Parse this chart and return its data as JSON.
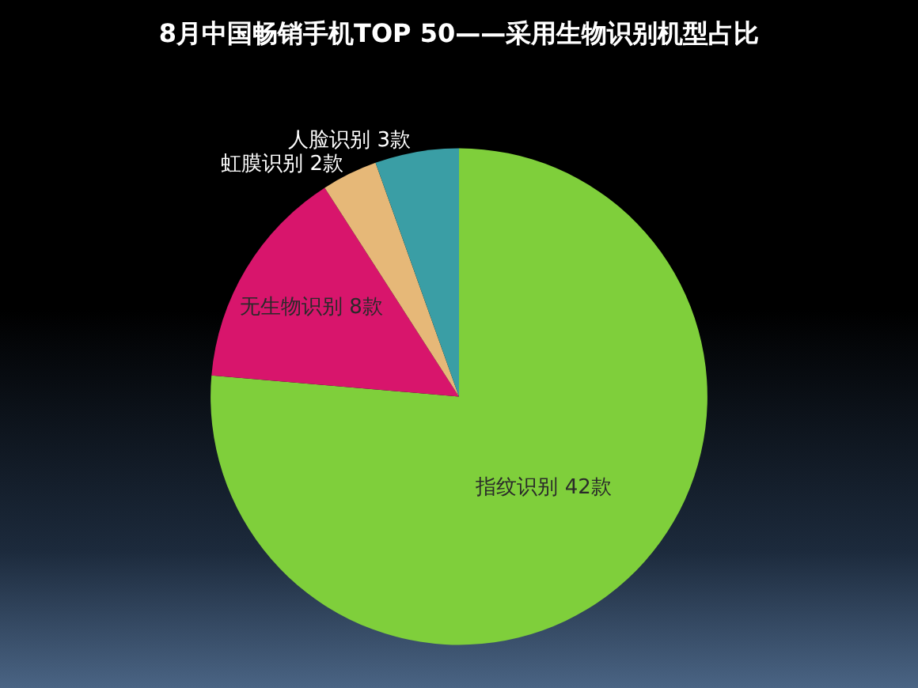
{
  "chart_data": {
    "type": "pie",
    "title": "8月中国畅销手机TOP 50——采用生物识别机型占比",
    "categories": [
      "指纹识别",
      "无生物识别",
      "虹膜识别",
      "人脸识别"
    ],
    "values": [
      42,
      8,
      2,
      3
    ],
    "value_labels": [
      "42款",
      "8款",
      "2款",
      "3款"
    ],
    "colors": [
      "#7fcf3b",
      "#d8156c",
      "#e6b878",
      "#3a9ea5"
    ]
  }
}
